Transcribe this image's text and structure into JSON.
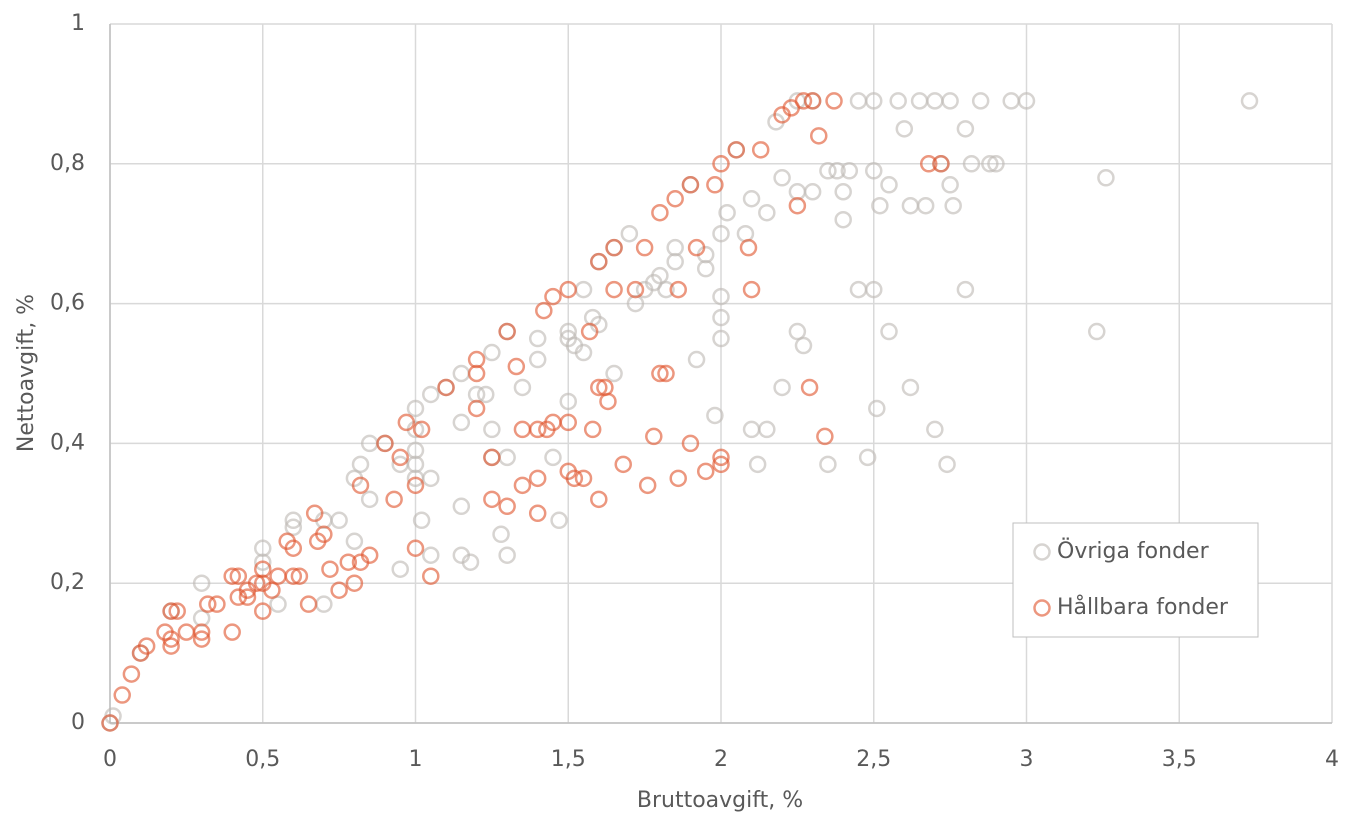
{
  "chart_data": {
    "type": "scatter",
    "x_label": "Bruttoavgift, %",
    "y_label": "Nettoavgift, %",
    "xlim": [
      0,
      4
    ],
    "ylim": [
      0,
      1
    ],
    "xticks": [
      0,
      {
        "value": 0.5,
        "label": "0,5"
      },
      1,
      {
        "value": 1.5,
        "label": "1,5"
      },
      2,
      {
        "value": 2.5,
        "label": "2,5"
      },
      3,
      {
        "value": 3.5,
        "label": "3,5"
      },
      4
    ],
    "yticks": [
      0,
      {
        "value": 0.2,
        "label": "0,2"
      },
      {
        "value": 0.4,
        "label": "0,4"
      },
      {
        "value": 0.6,
        "label": "0,6"
      },
      {
        "value": 0.8,
        "label": "0,8"
      },
      1
    ],
    "grid": true,
    "legend": "lower right",
    "series": [
      {
        "name": "Övriga fonder",
        "color": "#bdb8b2",
        "x": [
          0,
          0.01,
          0.1,
          0.2,
          0.3,
          0.3,
          0.5,
          0.5,
          0.6,
          0.6,
          0.7,
          0.75,
          0.7,
          0.55,
          0.8,
          0.8,
          0.82,
          0.85,
          0.85,
          0.9,
          0.95,
          0.95,
          1,
          1,
          1,
          1,
          1,
          1.02,
          1.05,
          1.05,
          1.05,
          1.1,
          1.15,
          1.15,
          1.15,
          1.15,
          1.18,
          1.2,
          1.23,
          1.25,
          1.25,
          1.25,
          1.28,
          1.3,
          1.3,
          1.3,
          1.35,
          1.4,
          1.4,
          1.45,
          1.5,
          1.5,
          1.52,
          1.55,
          1.5,
          1.47,
          1.55,
          1.58,
          1.6,
          1.6,
          1.65,
          1.65,
          1.7,
          1.72,
          1.75,
          1.78,
          1.8,
          1.82,
          1.85,
          1.85,
          1.9,
          1.92,
          1.95,
          1.95,
          1.98,
          2,
          2,
          2,
          2,
          2.02,
          2.05,
          2.08,
          2.1,
          2.1,
          2.12,
          2.15,
          2.15,
          2.18,
          2.2,
          2.2,
          2.25,
          2.25,
          2.25,
          2.27,
          2.3,
          2.3,
          2.35,
          2.35,
          2.38,
          2.4,
          2.4,
          2.42,
          2.45,
          2.45,
          2.48,
          2.5,
          2.5,
          2.5,
          2.51,
          2.52,
          2.55,
          2.55,
          2.58,
          2.6,
          2.62,
          2.62,
          2.65,
          2.67,
          2.7,
          2.7,
          2.72,
          2.74,
          2.75,
          2.75,
          2.76,
          2.8,
          2.8,
          2.82,
          2.85,
          2.88,
          2.9,
          2.95,
          3,
          3.23,
          3.26,
          3.73
        ],
        "values": [
          0,
          0.01,
          0.1,
          0.16,
          0.2,
          0.15,
          0.25,
          0.23,
          0.29,
          0.28,
          0.29,
          0.29,
          0.17,
          0.17,
          0.26,
          0.35,
          0.37,
          0.32,
          0.4,
          0.4,
          0.37,
          0.22,
          0.45,
          0.42,
          0.39,
          0.37,
          0.35,
          0.29,
          0.24,
          0.35,
          0.47,
          0.48,
          0.5,
          0.43,
          0.31,
          0.24,
          0.23,
          0.47,
          0.47,
          0.42,
          0.38,
          0.53,
          0.27,
          0.38,
          0.24,
          0.56,
          0.48,
          0.55,
          0.52,
          0.38,
          0.55,
          0.56,
          0.54,
          0.53,
          0.46,
          0.29,
          0.62,
          0.58,
          0.57,
          0.66,
          0.68,
          0.5,
          0.7,
          0.6,
          0.62,
          0.63,
          0.64,
          0.62,
          0.66,
          0.68,
          0.77,
          0.52,
          0.67,
          0.65,
          0.44,
          0.61,
          0.58,
          0.55,
          0.7,
          0.73,
          0.82,
          0.7,
          0.75,
          0.42,
          0.37,
          0.42,
          0.73,
          0.86,
          0.78,
          0.48,
          0.89,
          0.76,
          0.56,
          0.54,
          0.89,
          0.76,
          0.79,
          0.37,
          0.79,
          0.72,
          0.76,
          0.79,
          0.89,
          0.62,
          0.38,
          0.89,
          0.79,
          0.62,
          0.45,
          0.74,
          0.77,
          0.56,
          0.89,
          0.85,
          0.74,
          0.48,
          0.89,
          0.74,
          0.89,
          0.42,
          0.8,
          0.37,
          0.89,
          0.77,
          0.74,
          0.85,
          0.62,
          0.8,
          0.89,
          0.8,
          0.8,
          0.89,
          0.89,
          0.56,
          0.78,
          0.89
        ]
      },
      {
        "name": "Hållbara fonder",
        "color": "#e0522a",
        "x": [
          0,
          0.04,
          0.07,
          0.1,
          0.12,
          0.18,
          0.2,
          0.2,
          0.2,
          0.22,
          0.25,
          0.3,
          0.3,
          0.32,
          0.35,
          0.4,
          0.4,
          0.42,
          0.42,
          0.45,
          0.45,
          0.48,
          0.5,
          0.5,
          0.5,
          0.53,
          0.55,
          0.58,
          0.6,
          0.6,
          0.62,
          0.65,
          0.67,
          0.68,
          0.7,
          0.72,
          0.75,
          0.78,
          0.8,
          0.82,
          0.82,
          0.85,
          0.9,
          0.93,
          0.95,
          0.97,
          1,
          1,
          1.02,
          1.05,
          1.1,
          1.2,
          1.2,
          1.2,
          1.25,
          1.25,
          1.3,
          1.3,
          1.33,
          1.35,
          1.35,
          1.4,
          1.4,
          1.4,
          1.42,
          1.43,
          1.45,
          1.45,
          1.5,
          1.5,
          1.5,
          1.52,
          1.55,
          1.57,
          1.58,
          1.6,
          1.6,
          1.6,
          1.62,
          1.63,
          1.65,
          1.65,
          1.68,
          1.72,
          1.75,
          1.76,
          1.78,
          1.8,
          1.8,
          1.82,
          1.85,
          1.86,
          1.86,
          1.9,
          1.9,
          1.92,
          1.95,
          1.98,
          2,
          2,
          2,
          2.05,
          2.09,
          2.1,
          2.13,
          2.2,
          2.23,
          2.25,
          2.27,
          2.29,
          2.3,
          2.32,
          2.34,
          2.37,
          2.68,
          2.72
        ],
        "values": [
          0,
          0.04,
          0.07,
          0.1,
          0.11,
          0.13,
          0.16,
          0.12,
          0.11,
          0.16,
          0.13,
          0.13,
          0.12,
          0.17,
          0.17,
          0.21,
          0.13,
          0.18,
          0.21,
          0.19,
          0.18,
          0.2,
          0.22,
          0.2,
          0.16,
          0.19,
          0.21,
          0.26,
          0.25,
          0.21,
          0.21,
          0.17,
          0.3,
          0.26,
          0.27,
          0.22,
          0.19,
          0.23,
          0.2,
          0.23,
          0.34,
          0.24,
          0.4,
          0.32,
          0.38,
          0.43,
          0.25,
          0.34,
          0.42,
          0.21,
          0.48,
          0.52,
          0.5,
          0.45,
          0.32,
          0.38,
          0.56,
          0.31,
          0.51,
          0.42,
          0.34,
          0.42,
          0.35,
          0.3,
          0.59,
          0.42,
          0.61,
          0.43,
          0.62,
          0.43,
          0.36,
          0.35,
          0.35,
          0.56,
          0.42,
          0.66,
          0.48,
          0.32,
          0.48,
          0.46,
          0.68,
          0.62,
          0.37,
          0.62,
          0.68,
          0.34,
          0.41,
          0.73,
          0.5,
          0.5,
          0.75,
          0.62,
          0.35,
          0.77,
          0.4,
          0.68,
          0.36,
          0.77,
          0.8,
          0.38,
          0.37,
          0.82,
          0.68,
          0.62,
          0.82,
          0.87,
          0.88,
          0.74,
          0.89,
          0.48,
          0.89,
          0.84,
          0.41,
          0.89,
          0.8,
          0.8
        ]
      }
    ]
  }
}
